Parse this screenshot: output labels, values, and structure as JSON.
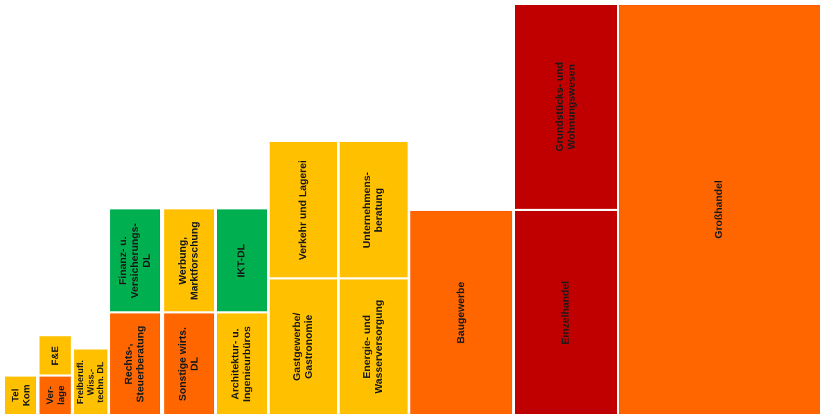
{
  "colors": {
    "yellow": "#ffc000",
    "orange": "#ff6600",
    "red": "#c00000",
    "green": "#00b050"
  },
  "tiles": [
    {
      "id": "telkom",
      "label": "Tel\nKom",
      "color": "yellow"
    },
    {
      "id": "verlage",
      "label": "Ver-\nlage",
      "color": "orange"
    },
    {
      "id": "fue",
      "label": "F&E",
      "color": "yellow"
    },
    {
      "id": "freiberufl",
      "label": "Freiberufl.\nWiss.-\ntechn. DL",
      "color": "yellow"
    },
    {
      "id": "rechts",
      "label": "Rechts-,\nSteuerberatung",
      "color": "orange"
    },
    {
      "id": "finanz",
      "label": "Finanz- u.\nVersicherungs-\nDL",
      "color": "green"
    },
    {
      "id": "sonstige",
      "label": "Sonstige wirts.\nDL",
      "color": "orange"
    },
    {
      "id": "werbung",
      "label": "Werbung,\nMarktforschung",
      "color": "yellow"
    },
    {
      "id": "architektur",
      "label": "Architektur- u.\nIngenieurbüros",
      "color": "yellow"
    },
    {
      "id": "iktdl",
      "label": "IKT-DL",
      "color": "green"
    },
    {
      "id": "gastgewerbe",
      "label": "Gastgewerbe/\nGastronomie",
      "color": "yellow"
    },
    {
      "id": "verkehr",
      "label": "Verkehr und Lagerei",
      "color": "yellow"
    },
    {
      "id": "energie",
      "label": "Energie- und\nWasserversorgung",
      "color": "yellow"
    },
    {
      "id": "unternehmens",
      "label": "Unternehmens-\nberatung",
      "color": "yellow"
    },
    {
      "id": "baugewerbe",
      "label": "Baugewerbe",
      "color": "orange"
    },
    {
      "id": "einzelhandel",
      "label": "Einzelhandel",
      "color": "red"
    },
    {
      "id": "grundstuecks",
      "label": "Grundstücks- und\nWohnungswesen",
      "color": "red"
    },
    {
      "id": "grosshandel",
      "label": "Großhandel",
      "color": "orange"
    }
  ]
}
